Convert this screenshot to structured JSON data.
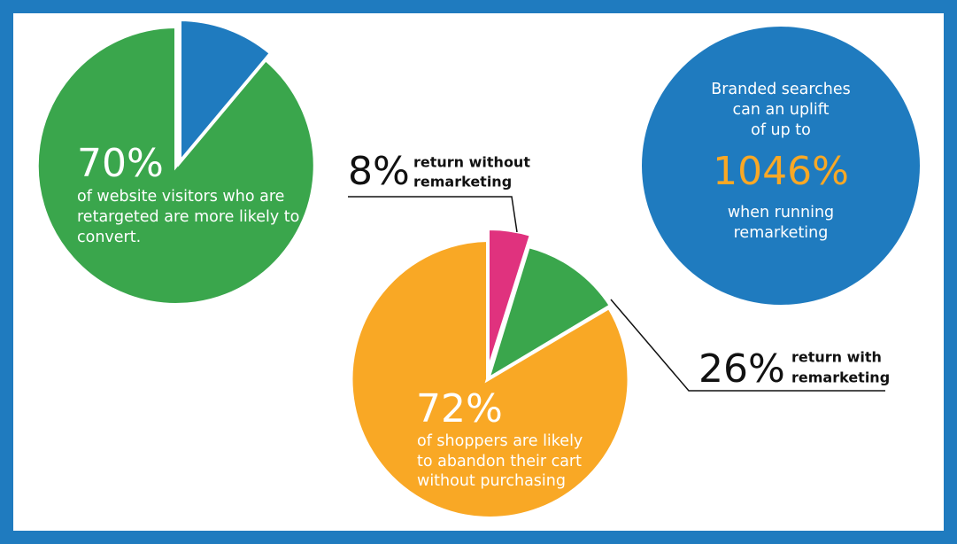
{
  "left_stat": {
    "percent": "70%",
    "lines": [
      "of website visitors who are",
      "retargeted are more likely to",
      "convert."
    ]
  },
  "center_stat": {
    "percent": "72%",
    "lines": [
      "of shoppers are likely",
      "to abandon their cart",
      "without purchasing"
    ]
  },
  "callout_without": {
    "percent": "8%",
    "lines": [
      "return without",
      "remarketing"
    ]
  },
  "callout_with": {
    "percent": "26%",
    "lines": [
      "return with",
      "remarketing"
    ]
  },
  "right_stat": {
    "intro": [
      "Branded searches",
      "can an uplift",
      "of up to"
    ],
    "percent": "1046%",
    "outro": [
      "when running",
      "remarketing"
    ]
  }
}
